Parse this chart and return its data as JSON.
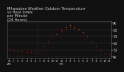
{
  "title": "Milwaukee Weather Outdoor Temperature\nvs Heat Index\nper Minute\n(24 Hours)",
  "title_fontsize": 3.8,
  "bg_color": "#111111",
  "plot_bg": "#111111",
  "grid_color": "#333333",
  "temp_color": "#ff0000",
  "heat_color": "#ff8800",
  "ylabel_fontsize": 3.5,
  "xlabel_fontsize": 2.8,
  "ylim": [
    38,
    92
  ],
  "yticks": [
    40,
    50,
    60,
    70,
    80,
    90
  ],
  "ytick_labels": [
    "40",
    "50",
    "60",
    "70",
    "80",
    "90"
  ],
  "time_labels": [
    "12\nAM",
    "1",
    "2",
    "3",
    "4",
    "5",
    "6",
    "7",
    "8",
    "9",
    "10",
    "11",
    "12\nPM",
    "1",
    "2",
    "3",
    "4",
    "5",
    "6",
    "7",
    "8",
    "9",
    "10",
    "11"
  ],
  "temp_x": [
    0,
    1,
    2,
    3,
    4,
    5,
    6,
    7,
    8,
    9,
    10,
    11,
    12,
    13,
    14,
    15,
    16,
    17,
    18,
    19,
    20,
    21,
    22,
    23
  ],
  "temp_y": [
    52,
    50,
    49,
    48,
    47,
    47,
    46,
    47,
    55,
    62,
    68,
    73,
    78,
    81,
    83,
    82,
    80,
    76,
    70,
    62,
    55,
    50,
    46,
    44
  ],
  "heat_x": [
    11,
    12,
    13,
    14,
    15,
    16,
    17
  ],
  "heat_y": [
    74,
    80,
    84,
    86,
    84,
    81,
    77
  ],
  "vline_x": 6.5,
  "marker_size": 0.8,
  "text_color": "#cccccc"
}
